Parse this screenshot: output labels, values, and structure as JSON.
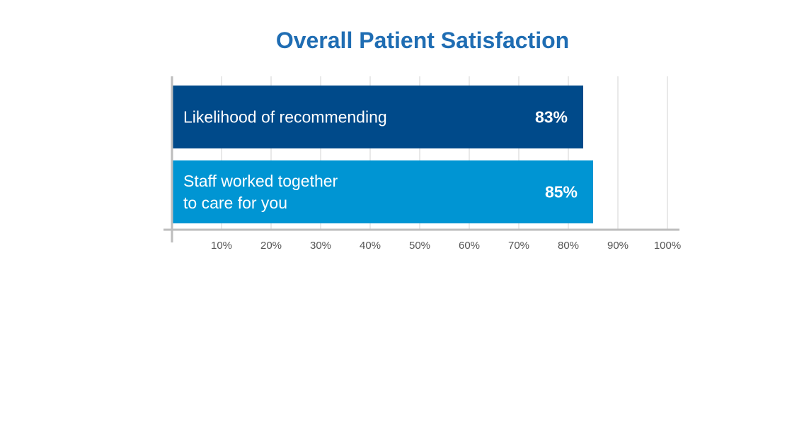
{
  "colors": {
    "title": "#1f6db3",
    "gridline": "#e2e2e2",
    "axis": "#bdbdbd",
    "tick_text": "#555555",
    "bar_text": "#ffffff"
  },
  "chart_data": {
    "type": "bar",
    "orientation": "horizontal",
    "title": "Overall Patient Satisfaction",
    "xlabel": "",
    "ylabel": "",
    "xlim": [
      0,
      100
    ],
    "grid": true,
    "categories": [
      [
        "Likelihood of recommending"
      ],
      [
        "Staff worked together",
        "to care for you"
      ]
    ],
    "values": [
      83,
      85
    ],
    "value_labels": [
      "83%",
      "85%"
    ],
    "bar_colors": [
      "#004a8a",
      "#0095d3"
    ],
    "ticks": [
      10,
      20,
      30,
      40,
      50,
      60,
      70,
      80,
      90,
      100
    ],
    "tick_labels": [
      "10%",
      "20%",
      "30%",
      "40%",
      "50%",
      "60%",
      "70%",
      "80%",
      "90%",
      "100%"
    ]
  }
}
